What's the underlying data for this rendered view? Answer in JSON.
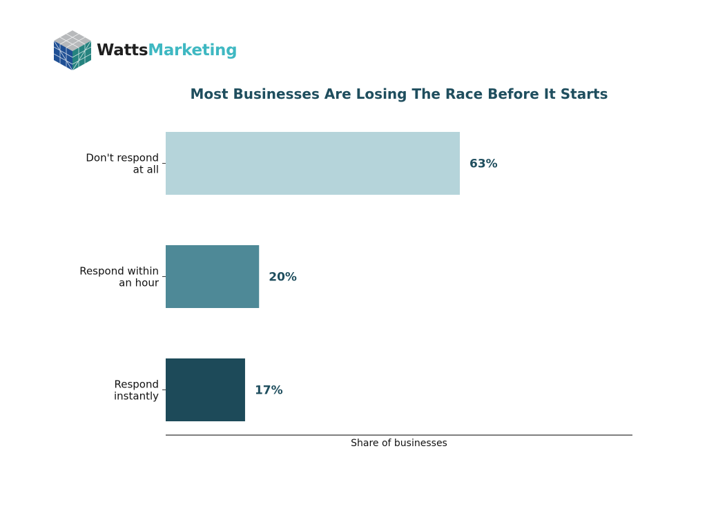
{
  "logo": {
    "name_part1": "Watts",
    "name_part2": "Marketing",
    "color_dark": "#1f1f1f",
    "color_accent": "#3fb8c2"
  },
  "chart_data": {
    "type": "bar",
    "orientation": "horizontal",
    "title": "Most Businesses Are Losing The Race Before It Starts",
    "xlabel": "Share of businesses",
    "ylabel": "",
    "categories": [
      [
        "Don't respond",
        "at all"
      ],
      [
        "Respond within",
        "an hour"
      ],
      [
        "Respond",
        "instantly"
      ]
    ],
    "values": [
      63,
      20,
      17
    ],
    "data_labels": [
      "63%",
      "20%",
      "17%"
    ],
    "colors": [
      "#b5d4da",
      "#4e8997",
      "#1d4a59"
    ],
    "label_color": "#1f4e5e",
    "xlim": [
      0,
      100
    ],
    "grid": false,
    "legend": "none"
  }
}
